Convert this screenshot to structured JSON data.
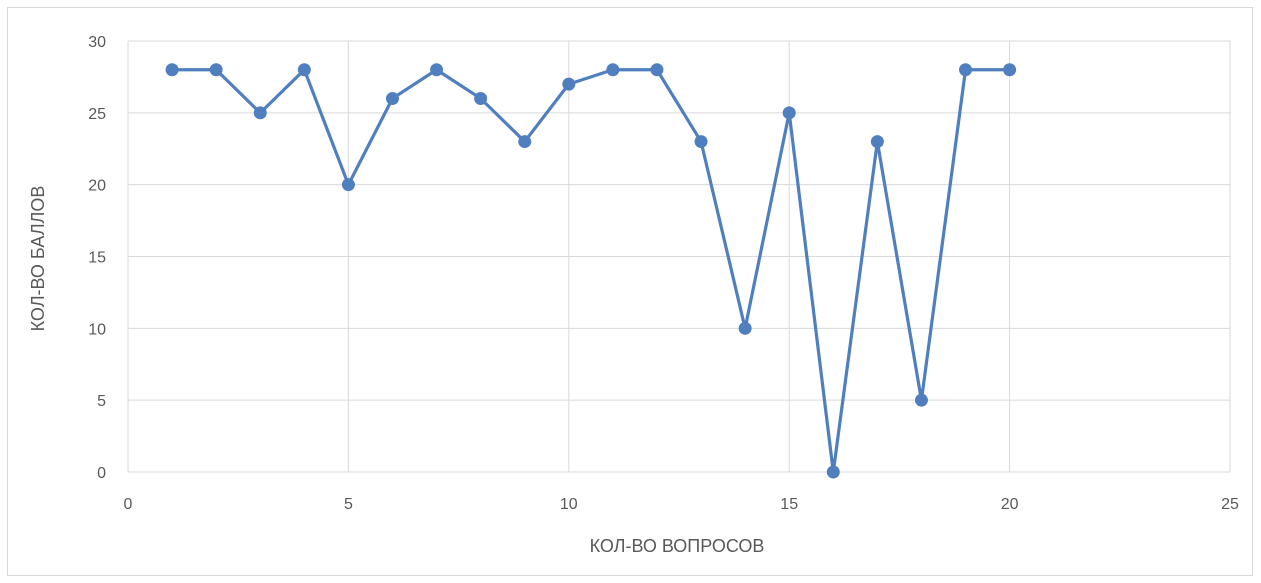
{
  "chart_data": {
    "type": "scatter",
    "style": "markers-with-lines",
    "xlabel": "КОЛ-ВО ВОПРОСОВ",
    "ylabel": "КОЛ-ВО БАЛЛОВ",
    "xlim": [
      0,
      25
    ],
    "ylim": [
      0,
      30
    ],
    "xticks": [
      "0",
      "5",
      "10",
      "15",
      "20",
      "25"
    ],
    "yticks": [
      "0",
      "5",
      "10",
      "15",
      "20",
      "25",
      "30"
    ],
    "grid": true,
    "legend": "none",
    "colors": {
      "series": "#4f7fbe",
      "grid": "#d9d9d9",
      "text": "#595959"
    },
    "series": [
      {
        "x": [
          1,
          2,
          3,
          4,
          5,
          6,
          7,
          8,
          9,
          10,
          11,
          12,
          13,
          14,
          15,
          16,
          17,
          18,
          19,
          20
        ],
        "values": [
          28,
          28,
          25,
          28,
          20,
          26,
          28,
          26,
          23,
          27,
          28,
          28,
          23,
          10,
          25,
          0,
          23,
          5,
          28,
          28
        ]
      }
    ]
  }
}
